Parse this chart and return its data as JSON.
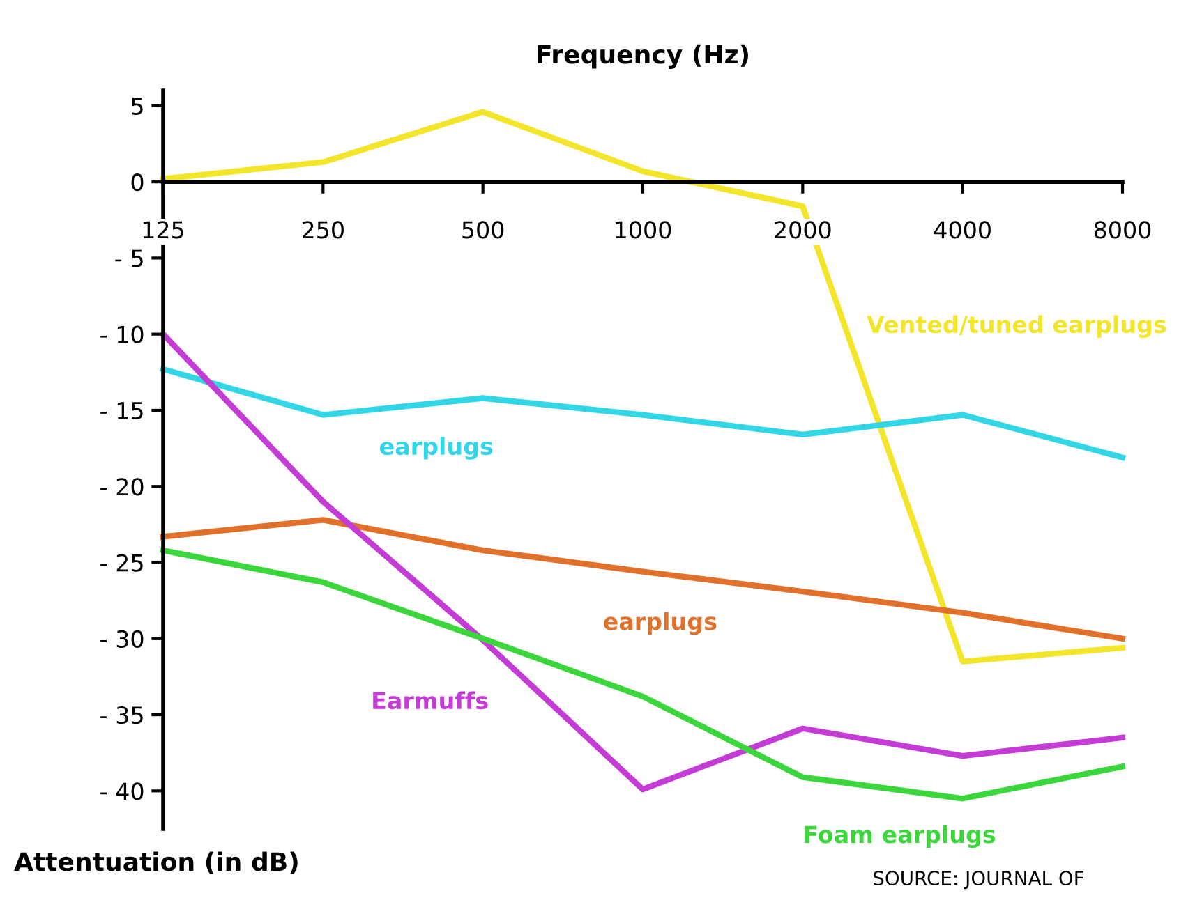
{
  "chart_data": {
    "type": "line",
    "xlabel": "Frequency (Hz)",
    "ylabel": "Attentuation (in dB)",
    "categories": [
      "125",
      "250",
      "500",
      "1000",
      "2000",
      "4000",
      "8000"
    ],
    "series": [
      {
        "name": "Vented/tuned earplugs",
        "color": "#f2e52a",
        "values": [
          0.2,
          1.3,
          4.6,
          0.7,
          -1.6,
          -31.5,
          -30.6
        ]
      },
      {
        "name": "earplugs",
        "color": "#33d6e6",
        "values": [
          -12.3,
          -15.3,
          -14.2,
          -15.3,
          -16.6,
          -15.3,
          -18.1
        ]
      },
      {
        "name": "earplugs",
        "color": "#e0702a",
        "values": [
          -23.3,
          -22.2,
          -24.2,
          -25.6,
          -26.9,
          -28.3,
          -30.0
        ]
      },
      {
        "name": "Earmuffs",
        "color": "#c43bd6",
        "values": [
          -10,
          -21,
          -30.1,
          -39.9,
          -35.9,
          -37.7,
          -36.5
        ]
      },
      {
        "name": "Foam earplugs",
        "color": "#3bd63b",
        "values": [
          -24.2,
          -26.3,
          -30.0,
          -33.8,
          -39.1,
          -40.5,
          -38.4
        ]
      }
    ],
    "ylim": [
      -42.5,
      6
    ],
    "yticks": [
      5,
      0,
      {
        "value": -5,
        "label": "- 5"
      },
      {
        "value": -10,
        "label": "- 10"
      },
      {
        "value": -15,
        "label": "- 15"
      },
      {
        "value": -20,
        "label": "- 20"
      },
      {
        "value": -25,
        "label": "- 25"
      },
      {
        "value": -30,
        "label": "- 30"
      },
      {
        "value": -35,
        "label": "- 35"
      },
      {
        "value": -40,
        "label": "- 40"
      }
    ],
    "grid": false,
    "legend": false,
    "marker": "none",
    "line_style": "solid",
    "annotations": [
      "SOURCE: JOURNAL OF"
    ]
  }
}
